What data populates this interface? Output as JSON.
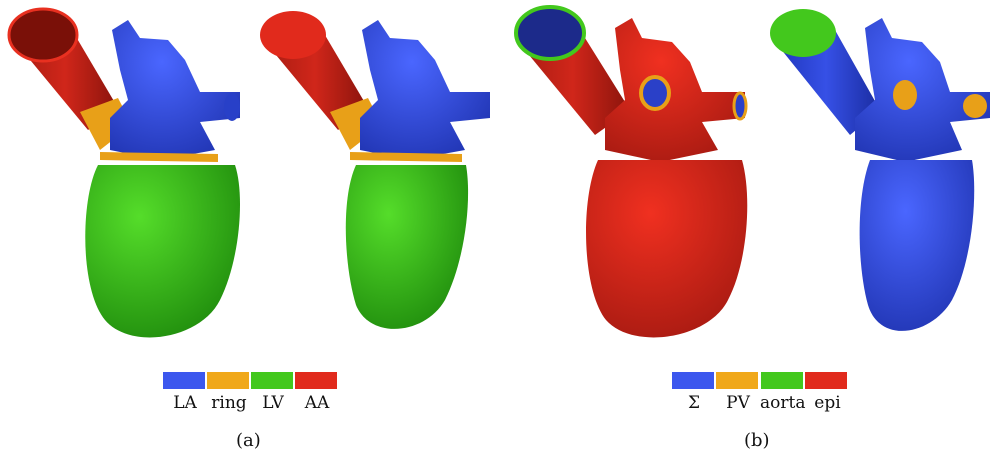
{
  "panel_a": {
    "caption": "(a)",
    "legend": [
      {
        "label": "LA",
        "color": "#3C57EE"
      },
      {
        "label": "ring",
        "color": "#F0A81A"
      },
      {
        "label": "LV",
        "color": "#43C81D"
      },
      {
        "label": "AA",
        "color": "#E12A1C"
      }
    ]
  },
  "panel_b": {
    "caption": "(b)",
    "legend": [
      {
        "label": "Σ",
        "color": "#3C57EE"
      },
      {
        "label": "PV",
        "color": "#F0A81A"
      },
      {
        "label": "aorta",
        "color": "#43C81D"
      },
      {
        "label": "epi",
        "color": "#E12A1C"
      }
    ]
  }
}
